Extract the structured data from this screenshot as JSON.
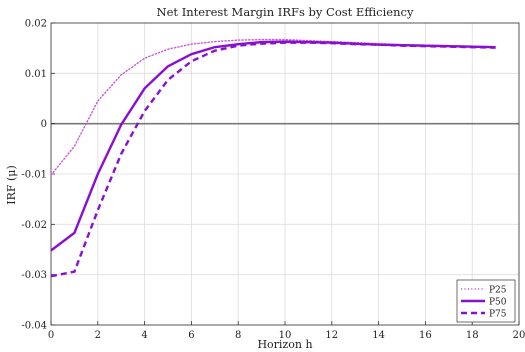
{
  "chart_data": {
    "type": "line",
    "title": "Net Interest Margin IRFs by Cost Efficiency",
    "xlabel": "Horizon h",
    "ylabel": "IRF (μ)",
    "xlim": [
      0,
      20
    ],
    "ylim": [
      -0.04,
      0.02
    ],
    "x_ticks": [
      "0",
      "2",
      "4",
      "6",
      "8",
      "10",
      "12",
      "14",
      "16",
      "18",
      "20"
    ],
    "y_ticks": [
      "-0.04",
      "-0.03",
      "-0.02",
      "-0.01",
      "0",
      "0.01",
      "0.02"
    ],
    "grid": true,
    "zero_line": true,
    "legend_position": "bottom-right",
    "x": [
      0,
      1,
      2,
      3,
      4,
      5,
      6,
      7,
      8,
      9,
      10,
      11,
      12,
      13,
      14,
      15,
      16,
      17,
      18,
      19
    ],
    "series": [
      {
        "name": "P25",
        "style": "dotted",
        "color": "#cc55dd",
        "values": [
          -0.0102,
          -0.0045,
          0.0045,
          0.0097,
          0.013,
          0.0148,
          0.0158,
          0.0163,
          0.0166,
          0.0167,
          0.0167,
          0.0165,
          0.0163,
          0.0161,
          0.0159,
          0.0157,
          0.0156,
          0.0155,
          0.0154,
          0.0153
        ]
      },
      {
        "name": "P50",
        "style": "solid",
        "color": "#8a0fcf",
        "values": [
          -0.0252,
          -0.0217,
          -0.01,
          -0.0002,
          0.007,
          0.0114,
          0.0138,
          0.0152,
          0.0158,
          0.0162,
          0.0163,
          0.0162,
          0.0161,
          0.0159,
          0.0157,
          0.0156,
          0.0155,
          0.0154,
          0.0153,
          0.0152
        ]
      },
      {
        "name": "P75",
        "style": "dashed",
        "color": "#8a0fcf",
        "values": [
          -0.0303,
          -0.0294,
          -0.0172,
          -0.006,
          0.0025,
          0.0087,
          0.0124,
          0.0145,
          0.0155,
          0.0159,
          0.0161,
          0.0161,
          0.016,
          0.0158,
          0.0157,
          0.0155,
          0.0154,
          0.0153,
          0.0152,
          0.0151
        ]
      }
    ]
  }
}
